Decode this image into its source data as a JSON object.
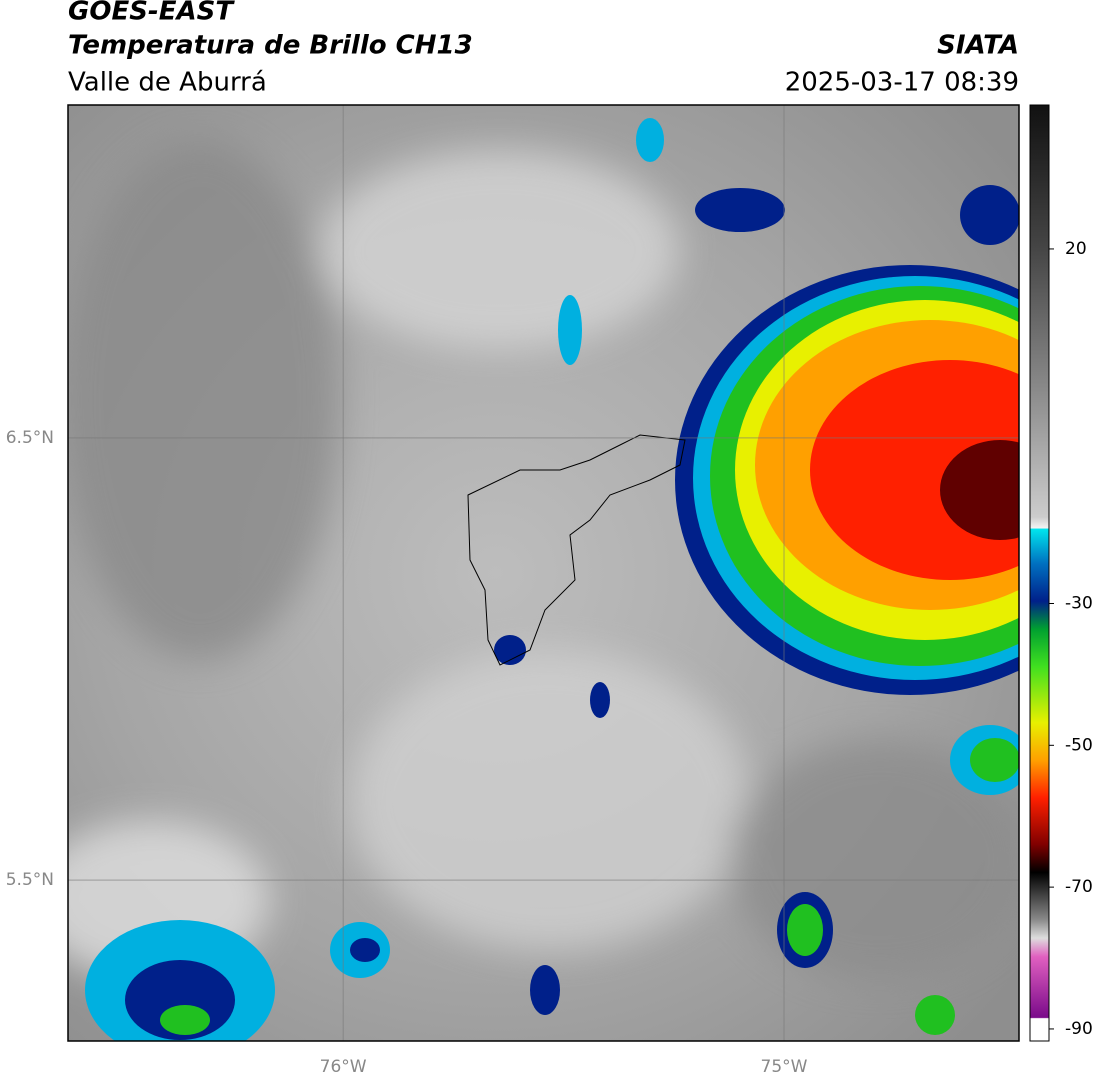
{
  "header": {
    "title": "GOES-EAST",
    "subtitle": "Temperatura de Brillo CH13",
    "region": "Valle de Aburrá",
    "source": "SIATA",
    "datetime": "2025-03-17 08:39"
  },
  "map": {
    "lat_range": [
      7.253,
      5.136
    ],
    "lon_range": [
      -76.624,
      -74.467
    ],
    "lat_ticks": [
      {
        "value": 6.5,
        "label": "6.5°N"
      },
      {
        "value": 5.5,
        "label": "5.5°N"
      }
    ],
    "lon_ticks": [
      {
        "value": -76,
        "label": "76°W"
      },
      {
        "value": -75,
        "label": "75°W"
      }
    ],
    "grid": true
  },
  "colorbar": {
    "range": [
      40.3,
      -91.7
    ],
    "ticks": [
      20,
      -30,
      -50,
      -70,
      -90
    ]
  }
}
